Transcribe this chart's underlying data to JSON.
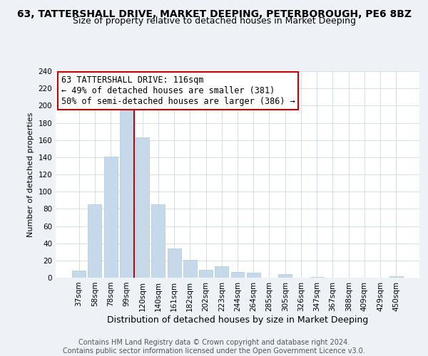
{
  "title": "63, TATTERSHALL DRIVE, MARKET DEEPING, PETERBOROUGH, PE6 8BZ",
  "subtitle": "Size of property relative to detached houses in Market Deeping",
  "xlabel": "Distribution of detached houses by size in Market Deeping",
  "ylabel": "Number of detached properties",
  "bar_color": "#c5d9ea",
  "bar_edge_color": "#aec9de",
  "categories": [
    "37sqm",
    "58sqm",
    "78sqm",
    "99sqm",
    "120sqm",
    "140sqm",
    "161sqm",
    "182sqm",
    "202sqm",
    "223sqm",
    "244sqm",
    "264sqm",
    "285sqm",
    "305sqm",
    "326sqm",
    "347sqm",
    "367sqm",
    "388sqm",
    "409sqm",
    "429sqm",
    "450sqm"
  ],
  "values": [
    8,
    85,
    141,
    199,
    163,
    85,
    34,
    21,
    9,
    13,
    7,
    6,
    0,
    4,
    0,
    1,
    0,
    0,
    0,
    0,
    2
  ],
  "ylim": [
    0,
    240
  ],
  "yticks": [
    0,
    20,
    40,
    60,
    80,
    100,
    120,
    140,
    160,
    180,
    200,
    220,
    240
  ],
  "vline_x_idx": 4,
  "vline_color": "#cc0000",
  "annotation_line1": "63 TATTERSHALL DRIVE: 116sqm",
  "annotation_line2": "← 49% of detached houses are smaller (381)",
  "annotation_line3": "50% of semi-detached houses are larger (386) →",
  "footer1": "Contains HM Land Registry data © Crown copyright and database right 2024.",
  "footer2": "Contains public sector information licensed under the Open Government Licence v3.0.",
  "background_color": "#eef2f7",
  "plot_background_color": "#ffffff",
  "grid_color": "#d0d8e0",
  "title_fontsize": 10,
  "subtitle_fontsize": 9,
  "xlabel_fontsize": 9,
  "ylabel_fontsize": 8,
  "tick_fontsize": 7.5,
  "footer_fontsize": 7,
  "ann_fontsize": 8.5
}
